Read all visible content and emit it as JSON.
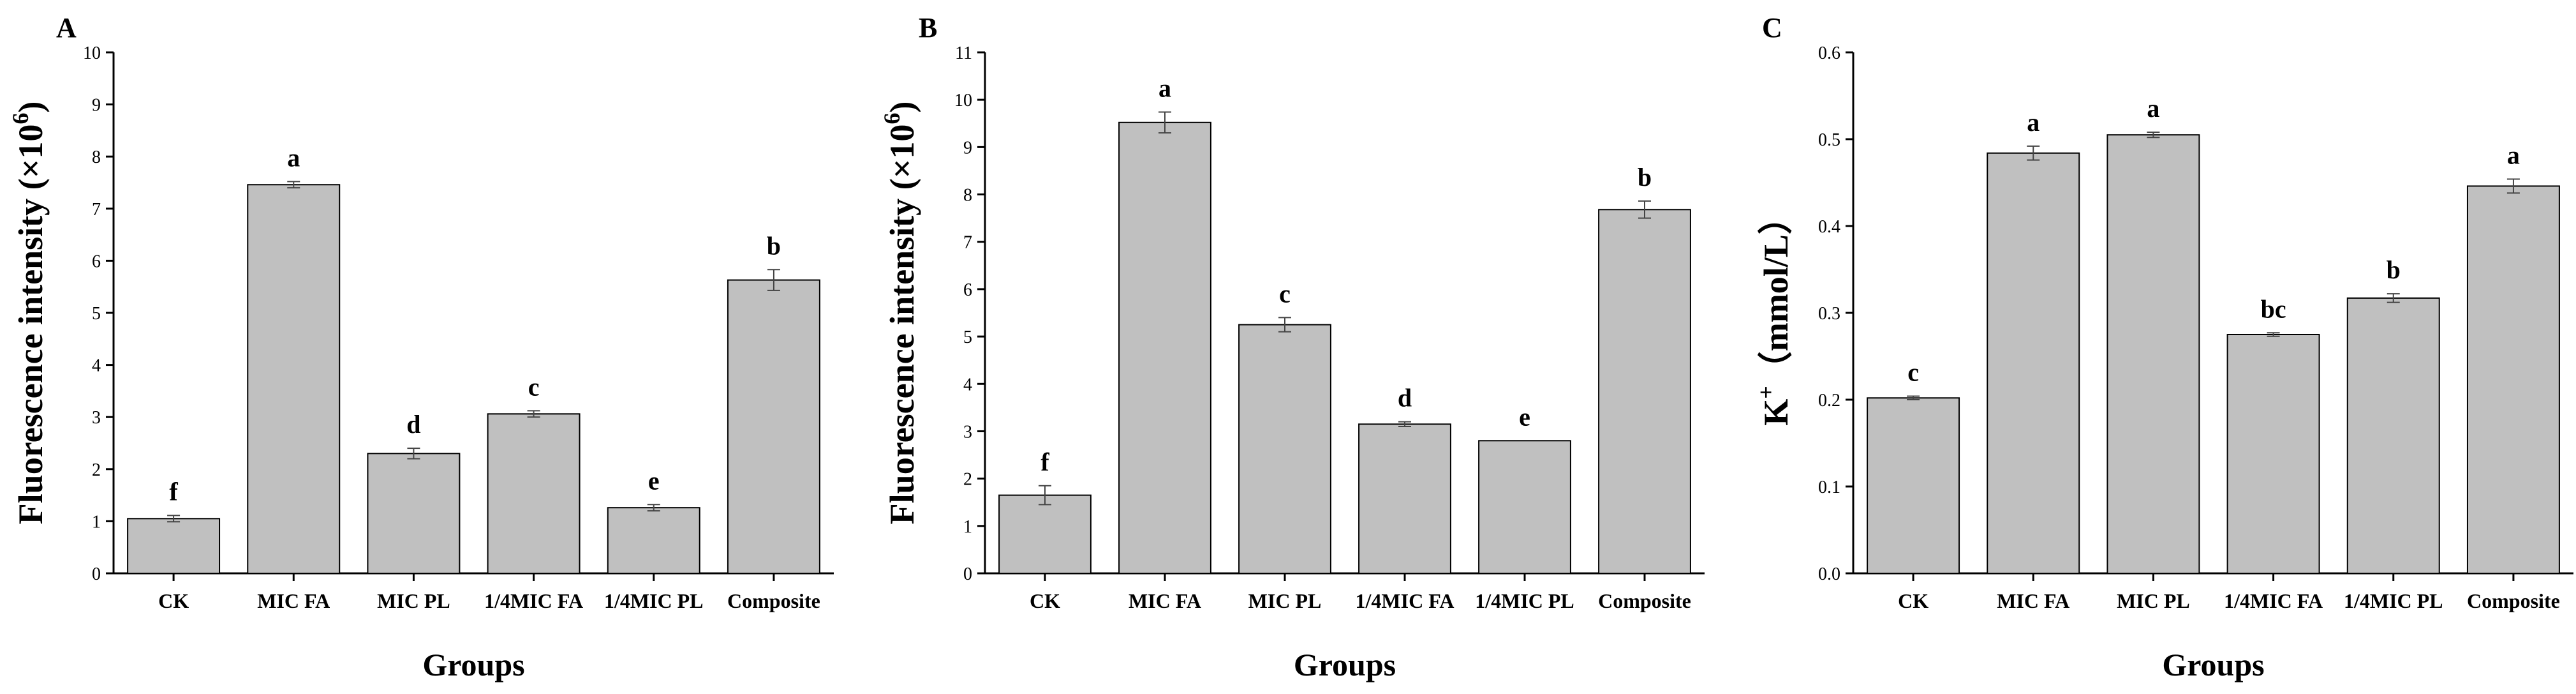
{
  "chart_data": [
    {
      "panel": "A",
      "type": "bar",
      "categories": [
        "CK",
        "MIC FA",
        "MIC PL",
        "1/4MIC FA",
        "1/4MIC PL",
        "Composite"
      ],
      "values": [
        1.05,
        7.46,
        2.3,
        3.06,
        1.26,
        5.63
      ],
      "errors": [
        0.06,
        0.06,
        0.1,
        0.06,
        0.06,
        0.2
      ],
      "letters": [
        "f",
        "a",
        "d",
        "c",
        "e",
        "b"
      ],
      "ylabel_main": "Fluorescence intensity (×10",
      "ylabel_sup": "6",
      "ylabel_end": ")",
      "xlabel": "Groups",
      "ylim": [
        0,
        10
      ],
      "yticks": [
        "0",
        "1",
        "2",
        "3",
        "4",
        "5",
        "6",
        "7",
        "8",
        "9",
        "10"
      ],
      "grid": false
    },
    {
      "panel": "B",
      "type": "bar",
      "categories": [
        "CK",
        "MIC FA",
        "MIC PL",
        "1/4MIC FA",
        "1/4MIC PL",
        "Composite"
      ],
      "values": [
        1.65,
        9.52,
        5.25,
        3.15,
        2.8,
        7.68
      ],
      "errors": [
        0.2,
        0.22,
        0.15,
        0.05,
        0.0,
        0.18
      ],
      "letters": [
        "f",
        "a",
        "c",
        "d",
        "e",
        "b"
      ],
      "ylabel_main": "Fluorescence intensity (×10",
      "ylabel_sup": "6",
      "ylabel_end": ")",
      "xlabel": "Groups",
      "ylim": [
        0,
        11
      ],
      "yticks": [
        "0",
        "1",
        "2",
        "3",
        "4",
        "5",
        "6",
        "7",
        "8",
        "9",
        "10",
        "11"
      ],
      "grid": false
    },
    {
      "panel": "C",
      "type": "bar",
      "categories": [
        "CK",
        "MIC FA",
        "MIC PL",
        "1/4MIC FA",
        "1/4MIC PL",
        "Composite"
      ],
      "values": [
        0.202,
        0.484,
        0.505,
        0.275,
        0.317,
        0.446
      ],
      "errors": [
        0.002,
        0.008,
        0.003,
        0.002,
        0.005,
        0.008
      ],
      "letters": [
        "c",
        "a",
        "a",
        "bc",
        "b",
        "a"
      ],
      "ylabel_main": "K",
      "ylabel_sup": "+",
      "ylabel_end": "（mmol/L）",
      "xlabel": "Groups",
      "ylim": [
        0,
        0.6
      ],
      "yticks": [
        "0.0",
        "0.1",
        "0.2",
        "0.3",
        "0.4",
        "0.5",
        "0.6"
      ],
      "grid": false
    }
  ],
  "colors": {
    "bar_fill": "#c0c0c0",
    "bar_stroke": "#000000",
    "error_bar": "#444444"
  }
}
